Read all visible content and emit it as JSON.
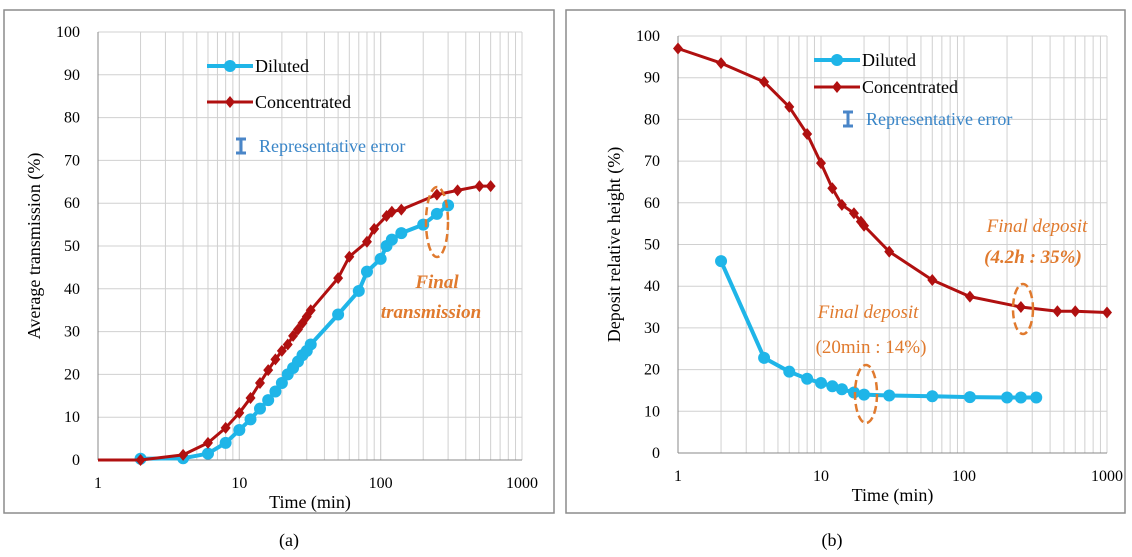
{
  "colors": {
    "diluted": "#1fb5e8",
    "concentrated": "#b01010",
    "error": "#4a86c8",
    "annotation": "#e07a2e",
    "grid": "#d0d0d0",
    "frame": "#8c8c8c"
  },
  "chart_data": [
    {
      "type": "line",
      "panel_label": "(a)",
      "xlabel": "Time (min)",
      "ylabel": "Average transmission (%)",
      "x_scale": "log",
      "xlim": [
        1,
        1000
      ],
      "ylim": [
        0,
        100
      ],
      "x_ticks": [
        "1",
        "10",
        "100",
        "1000"
      ],
      "y_ticks": [
        "0",
        "10",
        "20",
        "30",
        "40",
        "50",
        "60",
        "70",
        "80",
        "90",
        "100"
      ],
      "legend": {
        "diluted": "Diluted",
        "concentrated": "Concentrated",
        "error": "Representative error"
      },
      "annotation": {
        "line1": "Final",
        "line2": "transmission"
      },
      "series": [
        {
          "name": "Diluted",
          "x": [
            2,
            4,
            6,
            8,
            10,
            12,
            14,
            16,
            18,
            20,
            22,
            24,
            26,
            28,
            30,
            32,
            50,
            70,
            80,
            100,
            110,
            120,
            140,
            200,
            250,
            300
          ],
          "y": [
            0.3,
            0.4,
            1.5,
            4.0,
            7.0,
            9.5,
            12.0,
            14.0,
            16.0,
            18.0,
            20.0,
            21.5,
            23.0,
            24.5,
            25.5,
            27.0,
            34.0,
            39.5,
            44.0,
            47.0,
            50.0,
            51.5,
            53.0,
            55.0,
            57.5,
            59.5
          ]
        },
        {
          "name": "Concentrated",
          "x": [
            1,
            2,
            4,
            6,
            8,
            10,
            12,
            14,
            16,
            18,
            20,
            22,
            24,
            26,
            28,
            30,
            32,
            50,
            60,
            80,
            90,
            110,
            120,
            140,
            250,
            350,
            500,
            600
          ],
          "y": [
            0,
            0,
            1.2,
            4.0,
            7.5,
            11.0,
            14.5,
            18.0,
            21.0,
            23.5,
            25.5,
            27.0,
            29.0,
            30.5,
            32.0,
            33.5,
            35.0,
            42.5,
            47.5,
            51.0,
            54.0,
            57.0,
            58.0,
            58.5,
            62.0,
            63.0,
            64.0,
            64.0
          ]
        }
      ]
    },
    {
      "type": "line",
      "panel_label": "(b)",
      "xlabel": "Time (min)",
      "ylabel": "Deposit relative height (%)",
      "x_scale": "log",
      "xlim": [
        1,
        1000
      ],
      "ylim": [
        0,
        100
      ],
      "x_ticks": [
        "1",
        "10",
        "100",
        "1000"
      ],
      "y_ticks": [
        "0",
        "10",
        "20",
        "30",
        "40",
        "50",
        "60",
        "70",
        "80",
        "90",
        "100"
      ],
      "legend": {
        "diluted": "Diluted",
        "concentrated": "Concentrated",
        "error": "Representative error"
      },
      "annotation_left": {
        "line1": "Final deposit",
        "line2": "(20min : 14%)"
      },
      "annotation_right": {
        "line1": "Final deposit",
        "line2": "(4.2h : 35%)"
      },
      "series": [
        {
          "name": "Diluted",
          "x": [
            2,
            4,
            6,
            8,
            10,
            12,
            14,
            17,
            20,
            30,
            60,
            110,
            200,
            250,
            320
          ],
          "y": [
            46,
            22.8,
            19.5,
            17.8,
            16.8,
            16.0,
            15.3,
            14.5,
            14.0,
            13.8,
            13.6,
            13.4,
            13.3,
            13.3,
            13.3
          ]
        },
        {
          "name": "Concentrated",
          "x": [
            1,
            2,
            4,
            6,
            8,
            10,
            12,
            14,
            17,
            19,
            20,
            30,
            60,
            110,
            250,
            450,
            600,
            1000
          ],
          "y": [
            97,
            93.5,
            89,
            83,
            76.5,
            69.5,
            63.5,
            59.5,
            57.5,
            55.5,
            54.5,
            48.3,
            41.5,
            37.5,
            35,
            34,
            34,
            33.7
          ]
        }
      ]
    }
  ]
}
